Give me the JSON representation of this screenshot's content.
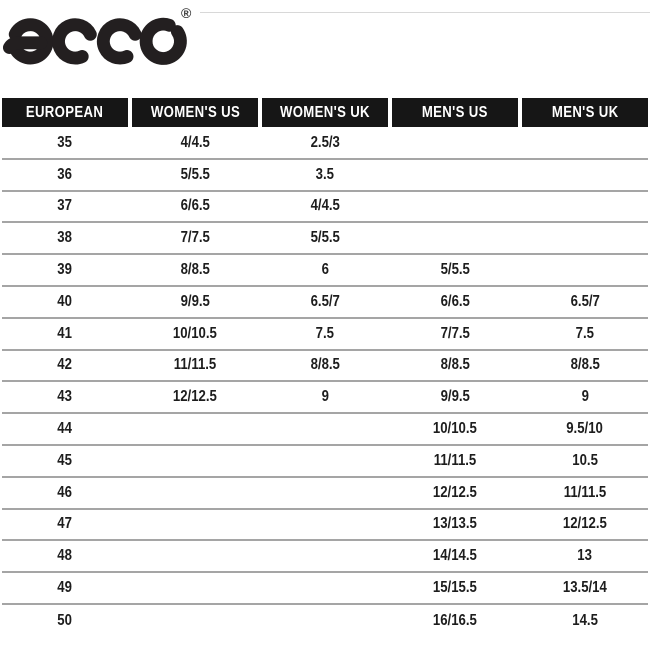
{
  "brand": {
    "name": "ECCO",
    "logo_text": "ecco",
    "registered_mark": "®"
  },
  "colors": {
    "header_bg": "#161616",
    "header_text": "#ffffff",
    "body_text": "#1d1d1d",
    "divider": "#a5a5a5",
    "top_rule": "#d8d8d8",
    "logo": "#231f20"
  },
  "chart_data": {
    "type": "table",
    "columns": [
      "EUROPEAN",
      "WOMEN'S US",
      "WOMEN'S UK",
      "MEN'S US",
      "MEN'S UK"
    ],
    "rows": [
      [
        "35",
        "4/4.5",
        "2.5/3",
        "",
        ""
      ],
      [
        "36",
        "5/5.5",
        "3.5",
        "",
        ""
      ],
      [
        "37",
        "6/6.5",
        "4/4.5",
        "",
        ""
      ],
      [
        "38",
        "7/7.5",
        "5/5.5",
        "",
        ""
      ],
      [
        "39",
        "8/8.5",
        "6",
        "5/5.5",
        ""
      ],
      [
        "40",
        "9/9.5",
        "6.5/7",
        "6/6.5",
        "6.5/7"
      ],
      [
        "41",
        "10/10.5",
        "7.5",
        "7/7.5",
        "7.5"
      ],
      [
        "42",
        "11/11.5",
        "8/8.5",
        "8/8.5",
        "8/8.5"
      ],
      [
        "43",
        "12/12.5",
        "9",
        "9/9.5",
        "9"
      ],
      [
        "44",
        "",
        "",
        "10/10.5",
        "9.5/10"
      ],
      [
        "45",
        "",
        "",
        "11/11.5",
        "10.5"
      ],
      [
        "46",
        "",
        "",
        "12/12.5",
        "11/11.5"
      ],
      [
        "47",
        "",
        "",
        "13/13.5",
        "12/12.5"
      ],
      [
        "48",
        "",
        "",
        "14/14.5",
        "13"
      ],
      [
        "49",
        "",
        "",
        "15/15.5",
        "13.5/14"
      ],
      [
        "50",
        "",
        "",
        "16/16.5",
        "14.5"
      ]
    ]
  }
}
